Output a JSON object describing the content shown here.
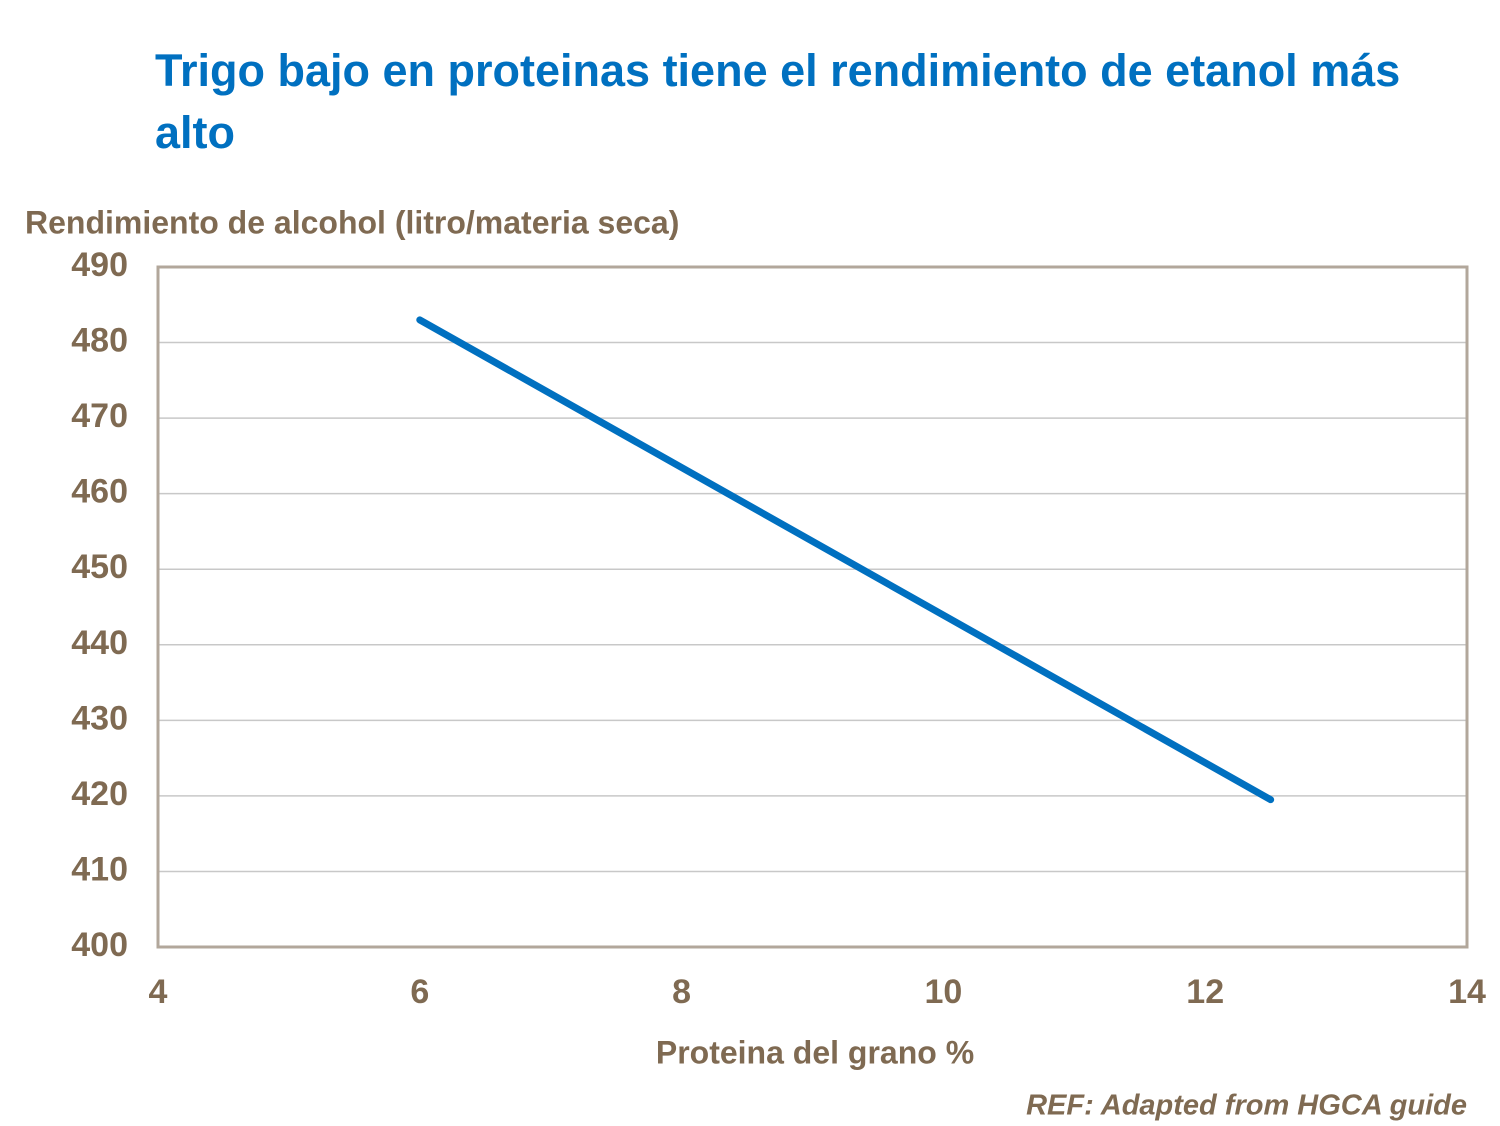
{
  "chart_data": {
    "type": "line",
    "title": "Trigo bajo en proteinas tiene el rendimiento de etanol más alto",
    "y_label": "Rendimiento de alcohol (litro/materia seca)",
    "x_label": "Proteina del grano %",
    "note": "REF: Adapted from HGCA guide",
    "x": [
      6,
      12.5
    ],
    "values": [
      483,
      419.5
    ],
    "color": "#0070c0",
    "xlim": [
      4,
      14
    ],
    "xticks": [
      4,
      6,
      8,
      10,
      12,
      14
    ],
    "ylim": [
      400,
      490
    ],
    "yticks": [
      400,
      410,
      420,
      430,
      440,
      450,
      460,
      470,
      480,
      490
    ],
    "grid": true
  }
}
